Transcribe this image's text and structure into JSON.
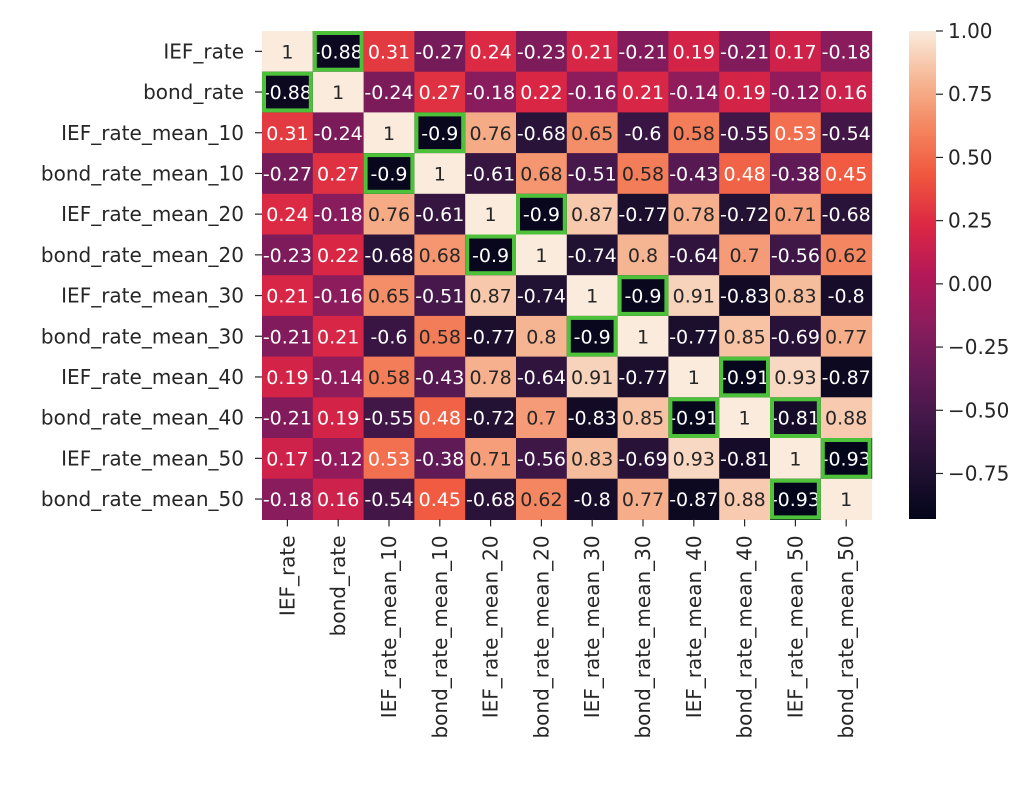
{
  "chart_data": {
    "type": "heatmap",
    "title": "",
    "xlabel": "",
    "ylabel": "",
    "labels": [
      "IEF_rate",
      "bond_rate",
      "IEF_rate_mean_10",
      "bond_rate_mean_10",
      "IEF_rate_mean_20",
      "bond_rate_mean_20",
      "IEF_rate_mean_30",
      "bond_rate_mean_30",
      "IEF_rate_mean_40",
      "bond_rate_mean_40",
      "IEF_rate_mean_50",
      "bond_rate_mean_50"
    ],
    "values": [
      [
        1,
        -0.88,
        0.31,
        -0.27,
        0.24,
        -0.23,
        0.21,
        -0.21,
        0.19,
        -0.21,
        0.17,
        -0.18
      ],
      [
        -0.88,
        1,
        -0.24,
        0.27,
        -0.18,
        0.22,
        -0.16,
        0.21,
        -0.14,
        0.19,
        -0.12,
        0.16
      ],
      [
        0.31,
        -0.24,
        1,
        -0.9,
        0.76,
        -0.68,
        0.65,
        -0.6,
        0.58,
        -0.55,
        0.53,
        -0.54
      ],
      [
        -0.27,
        0.27,
        -0.9,
        1,
        -0.61,
        0.68,
        -0.51,
        0.58,
        -0.43,
        0.48,
        -0.38,
        0.45
      ],
      [
        0.24,
        -0.18,
        0.76,
        -0.61,
        1,
        -0.9,
        0.87,
        -0.77,
        0.78,
        -0.72,
        0.71,
        -0.68
      ],
      [
        -0.23,
        0.22,
        -0.68,
        0.68,
        -0.9,
        1,
        -0.74,
        0.8,
        -0.64,
        0.7,
        -0.56,
        0.62
      ],
      [
        0.21,
        -0.16,
        0.65,
        -0.51,
        0.87,
        -0.74,
        1,
        -0.9,
        0.91,
        -0.83,
        0.83,
        -0.8
      ],
      [
        -0.21,
        0.21,
        -0.6,
        0.58,
        -0.77,
        0.8,
        -0.9,
        1,
        -0.77,
        0.85,
        -0.69,
        0.77
      ],
      [
        0.19,
        -0.14,
        0.58,
        -0.43,
        0.78,
        -0.64,
        0.91,
        -0.77,
        1,
        -0.91,
        0.93,
        -0.87
      ],
      [
        -0.21,
        0.19,
        -0.55,
        0.48,
        -0.72,
        0.7,
        -0.83,
        0.85,
        -0.91,
        1,
        -0.81,
        0.88
      ],
      [
        0.17,
        -0.12,
        0.53,
        -0.38,
        0.71,
        -0.56,
        0.83,
        -0.69,
        0.93,
        -0.81,
        1,
        -0.93
      ],
      [
        -0.18,
        0.16,
        -0.54,
        0.45,
        -0.68,
        0.62,
        -0.8,
        0.77,
        -0.87,
        0.88,
        -0.93,
        1
      ]
    ],
    "vmin": -0.93,
    "vmax": 1.0,
    "colormap": "rocket",
    "colorbar": {
      "ticks": [
        1.0,
        0.75,
        0.5,
        0.25,
        0.0,
        -0.25,
        -0.5,
        -0.75
      ],
      "tick_labels": [
        "1.00",
        "0.75",
        "0.50",
        "0.25",
        "0.00",
        "−0.25",
        "−0.50",
        "−0.75"
      ]
    },
    "highlighted_cells": [
      [
        0,
        1
      ],
      [
        1,
        0
      ],
      [
        2,
        3
      ],
      [
        3,
        2
      ],
      [
        4,
        5
      ],
      [
        5,
        4
      ],
      [
        6,
        7
      ],
      [
        7,
        6
      ],
      [
        8,
        9
      ],
      [
        9,
        8
      ],
      [
        9,
        10
      ],
      [
        10,
        11
      ],
      [
        11,
        10
      ]
    ],
    "highlight_color": "#4ec13b"
  }
}
